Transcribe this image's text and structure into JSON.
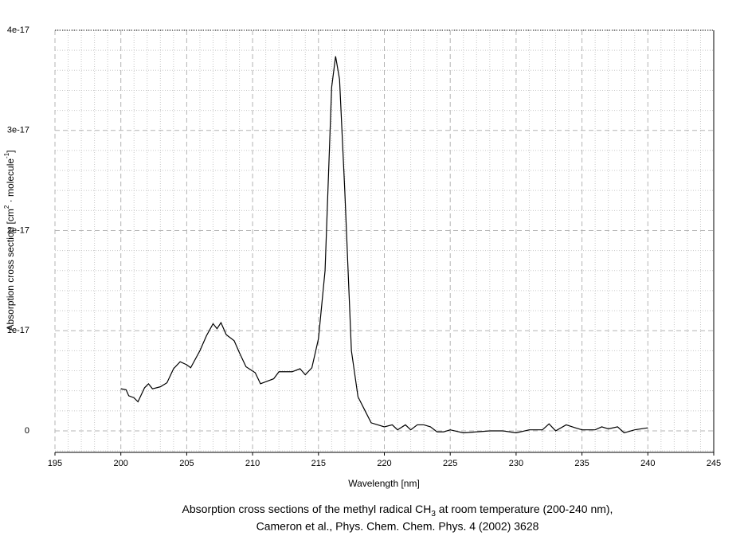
{
  "chart_data": {
    "type": "line",
    "title": [
      "Absorption cross sections of the methyl radical CH",
      "3",
      " at room temperature (200-240 nm),"
    ],
    "subtitle": "Cameron et al., Phys. Chem. Chem. Phys. 4 (2002) 3628",
    "xlabel": "Wavelength [nm]",
    "ylabel": [
      "Absorption cross section [cm",
      "2",
      " · molecule",
      "-1",
      "]"
    ],
    "xlim": [
      195,
      245
    ],
    "xticks": [
      195,
      200,
      205,
      210,
      215,
      220,
      225,
      230,
      235,
      240,
      245
    ],
    "ylim": [
      -2.15e-18,
      4e-17
    ],
    "yticks": [
      0,
      1e-17,
      2e-17,
      3e-17,
      4e-17
    ],
    "grid": true,
    "minor_grid": true,
    "series": [
      {
        "color": "#000000",
        "x": [
          200,
          200.4,
          200.6,
          201,
          201.3,
          201.8,
          202.1,
          202.4,
          203,
          203.5,
          204,
          204.5,
          205,
          205.3,
          206,
          206.5,
          207,
          207.3,
          207.6,
          208,
          208.6,
          209,
          209.5,
          210.2,
          210.6,
          211,
          211.6,
          212,
          213,
          213.6,
          214,
          214.5,
          215,
          215.5,
          216,
          216.3,
          216.6,
          217,
          217.5,
          218,
          218.5,
          219,
          219.5,
          220,
          220.6,
          221,
          221.6,
          222,
          222.5,
          223,
          223.5,
          224,
          224.5,
          225,
          226,
          227,
          228,
          229,
          230,
          231,
          232,
          232.5,
          233,
          233.8,
          234.5,
          235,
          236,
          236.5,
          237,
          237.7,
          238.2,
          239,
          240
        ],
        "values": [
          4.2e-18,
          4.1e-18,
          3.5e-18,
          3.3e-18,
          2.9e-18,
          4.3e-18,
          4.7e-18,
          4.2e-18,
          4.4e-18,
          4.8e-18,
          6.2e-18,
          6.9e-18,
          6.6e-18,
          6.3e-18,
          8e-18,
          9.5e-18,
          1.07e-17,
          1.02e-17,
          1.08e-17,
          9.6e-18,
          9e-18,
          7.8e-18,
          6.4e-18,
          5.8e-18,
          4.7e-18,
          4.9e-18,
          5.2e-18,
          5.9e-18,
          5.9e-18,
          6.2e-18,
          5.6e-18,
          6.3e-18,
          9.2e-18,
          1.6e-17,
          3.43e-17,
          3.74e-17,
          3.51e-17,
          2.39e-17,
          8e-18,
          3.4e-18,
          2.1e-18,
          8e-19,
          6e-19,
          4e-19,
          6e-19,
          1e-19,
          6e-19,
          1e-19,
          6e-19,
          6e-19,
          4e-19,
          -1e-19,
          -1e-19,
          1e-19,
          -2e-19,
          -1e-19,
          0,
          0,
          -2e-19,
          1e-19,
          1e-19,
          7e-19,
          0,
          6e-19,
          3e-19,
          1e-19,
          1e-19,
          4e-19,
          2e-19,
          4e-19,
          -2e-19,
          1e-19,
          3e-19
        ]
      }
    ]
  }
}
